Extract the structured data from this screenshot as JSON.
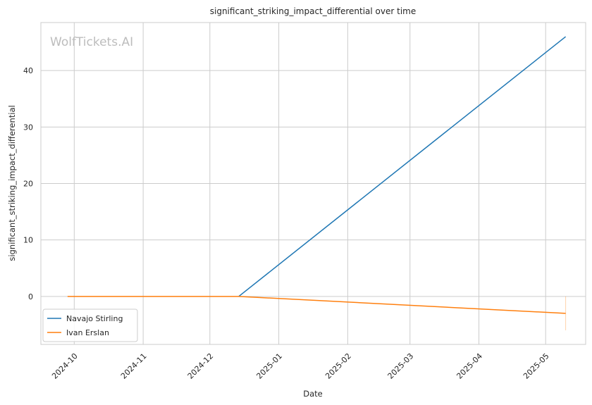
{
  "chart_data": {
    "type": "line",
    "title": "significant_striking_impact_differential over time",
    "xlabel": "Date",
    "ylabel": "significant_striking_impact_differential",
    "watermark": "WolfTickets.AI",
    "x_ticks": [
      "2024-10",
      "2024-11",
      "2024-12",
      "2025-01",
      "2025-02",
      "2025-03",
      "2025-04",
      "2025-05"
    ],
    "x_tick_dates": [
      "2024-10-01",
      "2024-11-01",
      "2024-12-01",
      "2025-01-01",
      "2025-02-01",
      "2025-03-01",
      "2025-04-01",
      "2025-05-01"
    ],
    "y_ticks": [
      0,
      10,
      20,
      30,
      40
    ],
    "xlim": [
      "2024-09-16",
      "2025-05-19"
    ],
    "ylim": [
      -8.5,
      48.5
    ],
    "grid": true,
    "legend_position": "lower-left",
    "series": [
      {
        "name": "Navajo Stirling",
        "color": "#1f77b4",
        "points": [
          {
            "x": "2024-12-14",
            "y": 0
          },
          {
            "x": "2025-05-10",
            "y": 46
          }
        ]
      },
      {
        "name": "Ivan Erslan",
        "color": "#ff7f0e",
        "points": [
          {
            "x": "2024-09-28",
            "y": 0
          },
          {
            "x": "2024-12-14",
            "y": 0
          },
          {
            "x": "2025-05-10",
            "y": -3
          }
        ],
        "error_bar": {
          "x": "2025-05-10",
          "low": -6,
          "high": 0
        }
      }
    ]
  }
}
